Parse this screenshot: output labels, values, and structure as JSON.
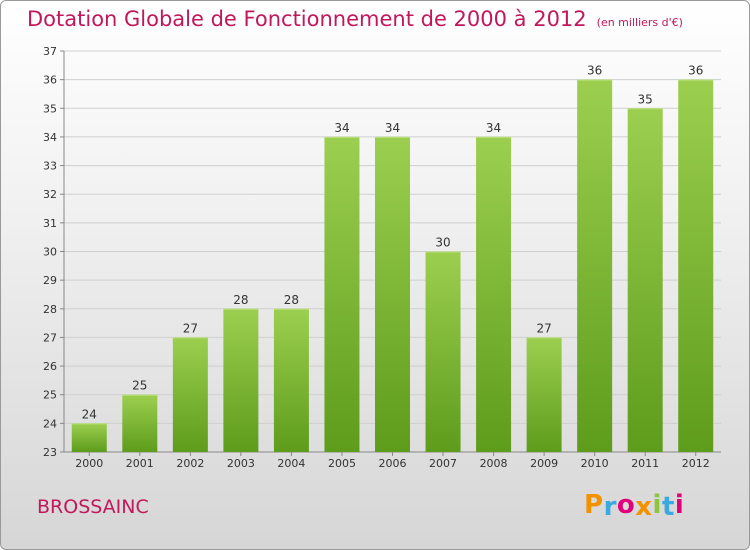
{
  "header": {
    "title": "Dotation Globale de Fonctionnement de 2000 à 2012",
    "subtitle": "(en milliers d'€)"
  },
  "footer": {
    "commune": "BROSSAINC",
    "logo_text": "Proxiti"
  },
  "colors": {
    "title": "#c2185b",
    "bar_top": "#9ccf4f",
    "bar_bottom": "#5e9c1c",
    "grid": "#cfcfcf",
    "logo": [
      "#f39200",
      "#3aa9e0",
      "#e2007a",
      "#f39200",
      "#8cc63f",
      "#3aa9e0",
      "#e2007a"
    ]
  },
  "chart_data": {
    "type": "bar",
    "categories": [
      "2000",
      "2001",
      "2002",
      "2003",
      "2004",
      "2005",
      "2006",
      "2007",
      "2008",
      "2009",
      "2010",
      "2011",
      "2012"
    ],
    "values": [
      24,
      25,
      27,
      28,
      28,
      34,
      34,
      30,
      34,
      27,
      36,
      35,
      36
    ],
    "ylim": [
      23,
      37
    ],
    "yticks": [
      23,
      24,
      25,
      26,
      27,
      28,
      29,
      30,
      31,
      32,
      33,
      34,
      35,
      36,
      37
    ],
    "grid": true,
    "data_labels": true
  }
}
